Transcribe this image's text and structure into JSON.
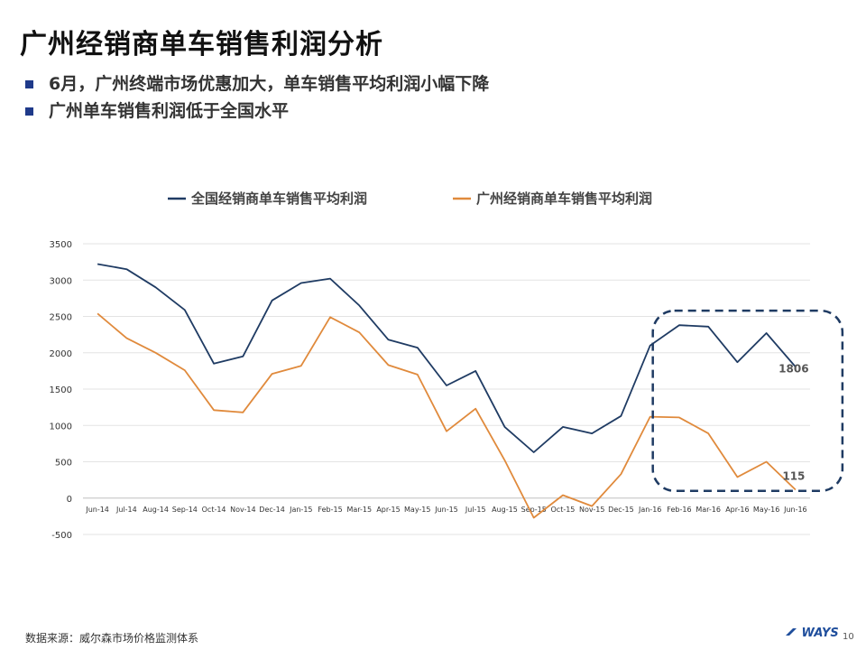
{
  "page": {
    "title": "广州经销商单车销售利润分析",
    "bullets": [
      "6月，广州终端市场优惠加大，单车销售平均利润小幅下降",
      "广州单车销售利润低于全国水平"
    ],
    "source": "数据来源：威尔森市场价格监测体系",
    "logo": "WAYS",
    "page_number": "10",
    "colors": {
      "bullet": "#1f3a8a",
      "national": "#1f3b63",
      "guangzhou": "#e08a3c",
      "highlight_box": "#1f3b63"
    }
  },
  "chart_data": {
    "type": "line",
    "categories": [
      "Jun-14",
      "Jul-14",
      "Aug-14",
      "Sep-14",
      "Oct-14",
      "Nov-14",
      "Dec-14",
      "Jan-15",
      "Feb-15",
      "Mar-15",
      "Apr-15",
      "May-15",
      "Jun-15",
      "Jul-15",
      "Aug-15",
      "Sep-15",
      "Oct-15",
      "Nov-15",
      "Dec-15",
      "Jan-16",
      "Feb-16",
      "Mar-16",
      "Apr-16",
      "May-16",
      "Jun-16"
    ],
    "series": [
      {
        "name": "全国经销商单车销售平均利润",
        "color": "#1f3b63",
        "values": [
          3220,
          3150,
          2900,
          2590,
          1850,
          1950,
          2720,
          2960,
          3020,
          2650,
          2180,
          2070,
          1550,
          1750,
          980,
          630,
          980,
          890,
          1130,
          2100,
          2380,
          2360,
          1870,
          2270,
          1806
        ]
      },
      {
        "name": "广州经销商单车销售平均利润",
        "color": "#e08a3c",
        "values": [
          2540,
          2200,
          2000,
          1760,
          1210,
          1180,
          1710,
          1820,
          2490,
          2280,
          1830,
          1700,
          920,
          1230,
          520,
          -270,
          40,
          -110,
          330,
          1120,
          1110,
          890,
          290,
          500,
          115
        ]
      }
    ],
    "annotations": [
      {
        "series": 0,
        "index": 24,
        "label": "1806"
      },
      {
        "series": 1,
        "index": 24,
        "label": "115"
      }
    ],
    "highlight": {
      "from_index": 19,
      "to_index": 24
    },
    "ylim": [
      -500,
      3500
    ],
    "yticks": [
      "-500",
      "0",
      "500",
      "1000",
      "1500",
      "2000",
      "2500",
      "3000",
      "3500"
    ],
    "legend_position": "top",
    "grid": true
  }
}
